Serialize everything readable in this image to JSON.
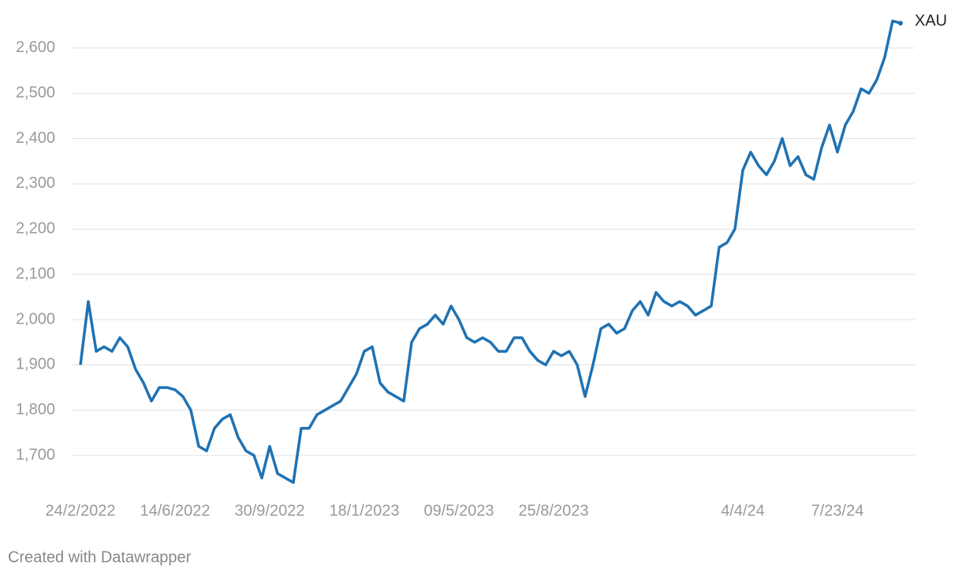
{
  "chart_data": {
    "type": "line",
    "x": [
      "24/2/2022",
      null,
      null,
      null,
      null,
      null,
      null,
      null,
      null,
      null,
      null,
      null,
      "14/6/2022",
      null,
      null,
      null,
      null,
      null,
      null,
      null,
      null,
      null,
      null,
      null,
      "30/9/2022",
      null,
      null,
      null,
      null,
      null,
      null,
      null,
      null,
      null,
      null,
      null,
      "18/1/2023",
      null,
      null,
      null,
      null,
      null,
      null,
      null,
      null,
      null,
      null,
      null,
      "09/5/2023",
      null,
      null,
      null,
      null,
      null,
      null,
      null,
      null,
      null,
      null,
      null,
      "25/8/2023",
      null,
      null,
      null,
      null,
      null,
      null,
      null,
      null,
      null,
      null,
      null,
      null,
      null,
      null,
      null,
      null,
      null,
      null,
      null,
      null,
      null,
      null,
      null,
      "4/4/24",
      null,
      null,
      null,
      null,
      null,
      null,
      null,
      null,
      null,
      null,
      null,
      "7/23/24",
      null,
      null,
      null,
      null,
      null,
      null,
      null,
      null
    ],
    "series": [
      {
        "name": "XAU",
        "color": "#1f72b3",
        "values": [
          1900,
          2040,
          1930,
          1940,
          1930,
          1960,
          1940,
          1890,
          1860,
          1820,
          1850,
          1850,
          1845,
          1830,
          1800,
          1720,
          1710,
          1760,
          1780,
          1790,
          1740,
          1710,
          1700,
          1650,
          1720,
          1660,
          1650,
          1640,
          1760,
          1760,
          1790,
          1800,
          1810,
          1820,
          1850,
          1880,
          1930,
          1940,
          1860,
          1840,
          1830,
          1820,
          1950,
          1980,
          1990,
          2010,
          1990,
          2030,
          2000,
          1960,
          1950,
          1960,
          1950,
          1930,
          1930,
          1960,
          1960,
          1930,
          1910,
          1900,
          1930,
          1920,
          1930,
          1900,
          1830,
          1900,
          1980,
          1990,
          1970,
          1980,
          2020,
          2040,
          2010,
          2060,
          2040,
          2030,
          2040,
          2030,
          2010,
          2020,
          2030,
          2160,
          2170,
          2200,
          2330,
          2370,
          2340,
          2320,
          2350,
          2400,
          2340,
          2360,
          2320,
          2310,
          2380,
          2430,
          2370,
          2430,
          2460,
          2510,
          2500,
          2530,
          2580,
          2660,
          2655
        ]
      }
    ],
    "ylim": [
      1620,
      2680
    ],
    "yticks": [
      {
        "value": 1700,
        "label": "1,700"
      },
      {
        "value": 1800,
        "label": "1,800"
      },
      {
        "value": 1900,
        "label": "1,900"
      },
      {
        "value": 2000,
        "label": "2,000"
      },
      {
        "value": 2100,
        "label": "2,100"
      },
      {
        "value": 2200,
        "label": "2,200"
      },
      {
        "value": 2300,
        "label": "2,300"
      },
      {
        "value": 2400,
        "label": "2,400"
      },
      {
        "value": 2500,
        "label": "2,500"
      },
      {
        "value": 2600,
        "label": "2,600"
      }
    ],
    "grid": true,
    "footer": "Created with Datawrapper"
  }
}
